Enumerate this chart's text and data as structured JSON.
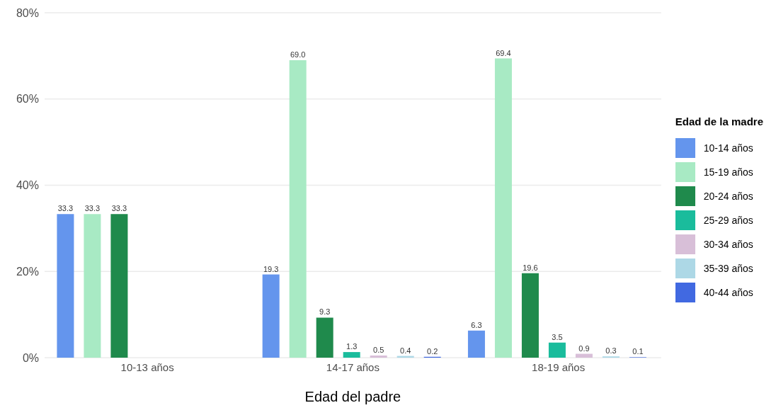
{
  "chart_data": {
    "type": "bar",
    "xlabel": "Edad del padre",
    "legend_title": "Edad de la madre",
    "legend": "right",
    "grid": "y",
    "categories": [
      "10-13 años",
      "14-17 años",
      "18-19 años"
    ],
    "ylim": [
      0,
      80
    ],
    "yticks": [
      {
        "value": 0,
        "label": "0%"
      },
      {
        "value": 20,
        "label": "20%"
      },
      {
        "value": 40,
        "label": "40%"
      },
      {
        "value": 60,
        "label": "60%"
      },
      {
        "value": 80,
        "label": "80%"
      }
    ],
    "series": [
      {
        "name": "10-14 años",
        "color": "#6495ed",
        "values": [
          33.3,
          19.3,
          6.3
        ],
        "value_labels": [
          "33.3",
          "19.3",
          "6.3"
        ]
      },
      {
        "name": "15-19 años",
        "color": "#a8eac4",
        "values": [
          33.3,
          69.0,
          69.4
        ],
        "value_labels": [
          "33.3",
          "69.0",
          "69.4"
        ]
      },
      {
        "name": "20-24 años",
        "color": "#1f8a4c",
        "values": [
          33.3,
          9.3,
          19.6
        ],
        "value_labels": [
          "33.3",
          "9.3",
          "19.6"
        ]
      },
      {
        "name": "25-29 años",
        "color": "#1abc9c",
        "values": [
          null,
          1.3,
          3.5
        ],
        "value_labels": [
          null,
          "1.3",
          "3.5"
        ]
      },
      {
        "name": "30-34 años",
        "color": "#d8bfd8",
        "values": [
          null,
          0.5,
          0.9
        ],
        "value_labels": [
          null,
          "0.5",
          "0.9"
        ]
      },
      {
        "name": "35-39 años",
        "color": "#add8e6",
        "values": [
          null,
          0.4,
          0.3
        ],
        "value_labels": [
          null,
          "0.4",
          "0.3"
        ]
      },
      {
        "name": "40-44 años",
        "color": "#4169e1",
        "values": [
          null,
          0.2,
          0.1
        ],
        "value_labels": [
          null,
          "0.2",
          "0.1"
        ]
      }
    ]
  }
}
